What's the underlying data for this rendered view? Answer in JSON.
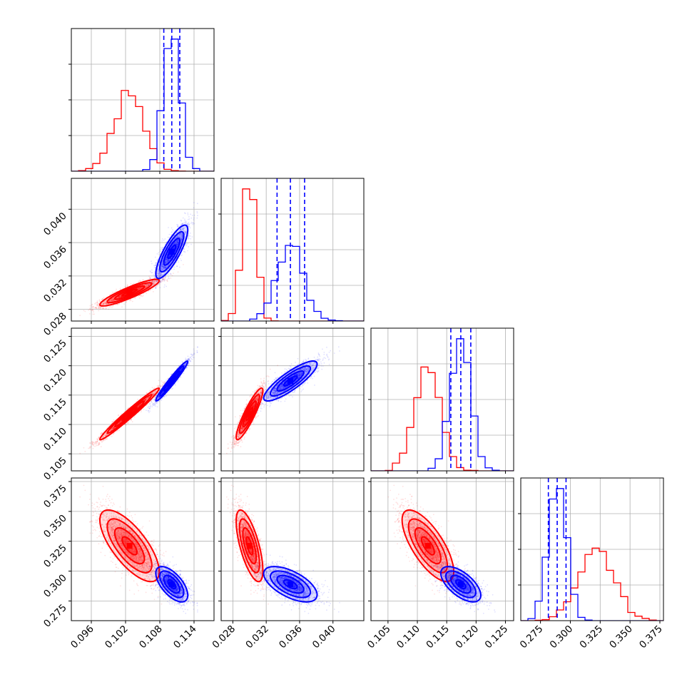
{
  "chart_data": {
    "type": "corner",
    "title": "",
    "grid": true,
    "series": [
      {
        "name": "",
        "color": "#ff0000",
        "mean": [
          0.1027,
          0.03,
          0.1118,
          0.3212
        ],
        "std": [
          0.0026,
          0.0008,
          0.0022,
          0.015
        ],
        "rho": [
          [
            1,
            0.9,
            0.98,
            -0.72
          ],
          [
            0.9,
            1,
            0.9,
            -0.68
          ],
          [
            0.98,
            0.9,
            1,
            -0.72
          ],
          [
            -0.72,
            -0.68,
            -0.72,
            1
          ]
        ]
      },
      {
        "name": "",
        "color": "#0000ff",
        "mean": [
          0.1101,
          0.0349,
          0.1174,
          0.289
        ],
        "std": [
          0.0014,
          0.0016,
          0.0017,
          0.0074
        ],
        "rho": [
          [
            1,
            0.82,
            0.97,
            -0.62
          ],
          [
            0.82,
            1,
            0.85,
            -0.6
          ],
          [
            0.97,
            0.85,
            1,
            -0.62
          ],
          [
            -0.62,
            -0.6,
            -0.62,
            1
          ]
        ]
      }
    ],
    "quantile_lines": {
      "color": "#0000ff",
      "values": [
        [
          0.1087,
          0.1101,
          0.1115
        ],
        [
          0.0333,
          0.0349,
          0.0366
        ],
        [
          0.1157,
          0.1174,
          0.1191
        ],
        [
          0.2816,
          0.289,
          0.2964
        ]
      ]
    },
    "params": [
      {
        "range": [
          0.0925,
          0.1175
        ],
        "ticks": [
          0.096,
          0.102,
          0.108,
          0.114
        ],
        "tick_labels": [
          "0.096",
          "0.102",
          "0.108",
          "0.114"
        ]
      },
      {
        "range": [
          0.0266,
          0.0437
        ],
        "ticks": [
          0.028,
          0.032,
          0.036,
          0.04
        ],
        "tick_labels": [
          "0.028",
          "0.032",
          "0.036",
          "0.040"
        ]
      },
      {
        "range": [
          0.1021,
          0.1264
        ],
        "ticks": [
          0.105,
          0.11,
          0.115,
          0.12,
          0.125
        ],
        "tick_labels": [
          "0.105",
          "0.110",
          "0.115",
          "0.120",
          "0.125"
        ]
      },
      {
        "range": [
          0.2585,
          0.378
        ],
        "ticks": [
          0.275,
          0.3,
          0.325,
          0.35,
          0.375
        ],
        "tick_labels": [
          "0.275",
          "0.300",
          "0.325",
          "0.350",
          "0.375"
        ]
      }
    ]
  }
}
